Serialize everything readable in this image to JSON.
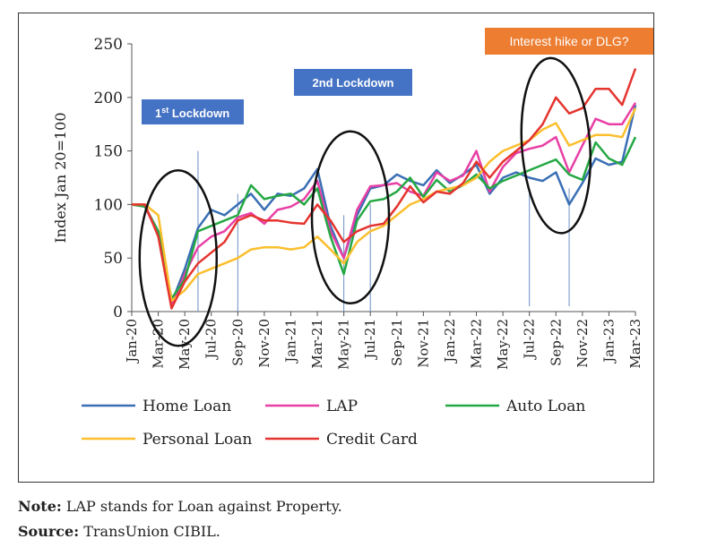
{
  "chart_data": {
    "type": "line",
    "ylabel": "Index Jan 20=100",
    "ylim": [
      0,
      250
    ],
    "yticks": [
      0,
      50,
      100,
      150,
      200,
      250
    ],
    "categories": [
      "Jan-20",
      "Feb-20",
      "Mar-20",
      "Apr-20",
      "May-20",
      "Jun-20",
      "Jul-20",
      "Aug-20",
      "Sep-20",
      "Oct-20",
      "Nov-20",
      "Dec-20",
      "Jan-21",
      "Feb-21",
      "Mar-21",
      "Apr-21",
      "May-21",
      "Jun-21",
      "Jul-21",
      "Aug-21",
      "Sep-21",
      "Oct-21",
      "Nov-21",
      "Dec-21",
      "Jan-22",
      "Feb-22",
      "Mar-22",
      "Apr-22",
      "May-22",
      "Jun-22",
      "Jul-22",
      "Aug-22",
      "Sep-22",
      "Oct-22",
      "Nov-22",
      "Dec-22",
      "Jan-23",
      "Feb-23",
      "Mar-23"
    ],
    "tick_labels": [
      "Jan-20",
      "Mar-20",
      "May-20",
      "Jul-20",
      "Sep-20",
      "Nov-20",
      "Jan-21",
      "Mar-21",
      "May-21",
      "Jul-21",
      "Sep-21",
      "Nov-21",
      "Jan-22",
      "Mar-22",
      "May-22",
      "Jul-22",
      "Sep-22",
      "Nov-22",
      "Jan-23",
      "Mar-23"
    ],
    "series": [
      {
        "name": "Home Loan",
        "color": "#3a6fb5",
        "values": [
          100,
          98,
          75,
          8,
          40,
          78,
          95,
          90,
          100,
          110,
          95,
          110,
          108,
          115,
          133,
          80,
          50,
          90,
          115,
          118,
          128,
          122,
          118,
          132,
          120,
          128,
          137,
          110,
          125,
          130,
          125,
          122,
          130,
          100,
          120,
          143,
          137,
          140,
          193
        ]
      },
      {
        "name": "LAP",
        "color": "#e83fa5",
        "values": [
          100,
          98,
          72,
          5,
          35,
          60,
          70,
          75,
          88,
          92,
          82,
          95,
          98,
          105,
          122,
          75,
          50,
          95,
          117,
          118,
          120,
          112,
          108,
          130,
          122,
          127,
          150,
          112,
          135,
          148,
          152,
          155,
          163,
          130,
          155,
          180,
          175,
          175,
          195
        ]
      },
      {
        "name": "Auto Loan",
        "color": "#25a844",
        "values": [
          100,
          98,
          75,
          12,
          30,
          75,
          80,
          85,
          90,
          118,
          105,
          108,
          110,
          100,
          115,
          70,
          35,
          85,
          103,
          105,
          112,
          125,
          107,
          123,
          112,
          118,
          128,
          115,
          122,
          127,
          132,
          137,
          142,
          128,
          123,
          158,
          143,
          137,
          163
        ]
      },
      {
        "name": "Personal Loan",
        "color": "#fbbf2d",
        "values": [
          100,
          100,
          90,
          10,
          20,
          35,
          40,
          45,
          50,
          58,
          60,
          60,
          58,
          60,
          70,
          58,
          45,
          65,
          75,
          80,
          90,
          100,
          105,
          112,
          115,
          118,
          125,
          140,
          150,
          155,
          160,
          170,
          176,
          155,
          160,
          165,
          165,
          163,
          190
        ]
      },
      {
        "name": "Credit Card",
        "color": "#e5342f",
        "values": [
          100,
          100,
          70,
          3,
          28,
          45,
          55,
          65,
          85,
          90,
          85,
          85,
          83,
          82,
          100,
          85,
          65,
          75,
          80,
          82,
          98,
          117,
          102,
          112,
          110,
          120,
          140,
          125,
          140,
          150,
          160,
          175,
          200,
          185,
          190,
          208,
          208,
          193,
          227
        ]
      }
    ],
    "annotations": [
      "1st Lockdown",
      "2nd Lockdown",
      "Interest hike or DLG?"
    ],
    "legend_position": "bottom"
  },
  "annotations": {
    "lockdown1_main": "1",
    "lockdown1_sup": "st",
    "lockdown1_rest": " Lockdown",
    "lockdown2": "2nd Lockdown",
    "interest": "Interest hike or DLG?"
  },
  "colors": {
    "box_blue": "#4472c4",
    "box_orange": "#ed7d31"
  },
  "notes": {
    "note_label": "Note:",
    "note_text": " LAP stands for Loan against Property.",
    "source_label": "Source:",
    "source_text": " TransUnion CIBIL."
  }
}
